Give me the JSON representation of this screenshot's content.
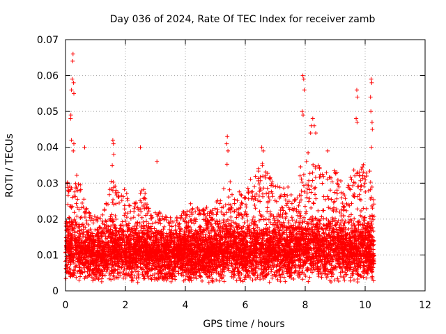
{
  "chart_data": {
    "type": "scatter",
    "title": "Day 036 of 2024, Rate Of TEC Index for receiver zamb",
    "xlabel": "GPS time / hours",
    "ylabel": "ROTI / TECUs",
    "xlim": [
      0,
      12
    ],
    "ylim": [
      0,
      0.07
    ],
    "xticks": [
      "0",
      "2",
      "4",
      "6",
      "8",
      "10",
      "12"
    ],
    "yticks": [
      "0",
      "0.01",
      "0.02",
      "0.03",
      "0.04",
      "0.05",
      "0.06",
      "0.07"
    ],
    "grid": true,
    "marker": "+",
    "color": "#ff0000",
    "series": [
      {
        "name": "ROTI",
        "x_range_hours": [
          0,
          10.3
        ],
        "typical_range": [
          0.002,
          0.02
        ],
        "envelope": [
          [
            0.0,
            0.03
          ],
          [
            0.2,
            0.031
          ],
          [
            0.4,
            0.034
          ],
          [
            0.6,
            0.026
          ],
          [
            0.8,
            0.022
          ],
          [
            1.0,
            0.021
          ],
          [
            1.2,
            0.022
          ],
          [
            1.4,
            0.026
          ],
          [
            1.6,
            0.033
          ],
          [
            1.8,
            0.026
          ],
          [
            2.0,
            0.029
          ],
          [
            2.2,
            0.023
          ],
          [
            2.4,
            0.027
          ],
          [
            2.6,
            0.03
          ],
          [
            2.8,
            0.023
          ],
          [
            3.0,
            0.022
          ],
          [
            3.2,
            0.022
          ],
          [
            3.4,
            0.021
          ],
          [
            3.6,
            0.02
          ],
          [
            3.8,
            0.021
          ],
          [
            4.0,
            0.023
          ],
          [
            4.2,
            0.025
          ],
          [
            4.4,
            0.024
          ],
          [
            4.6,
            0.025
          ],
          [
            4.8,
            0.022
          ],
          [
            5.0,
            0.025
          ],
          [
            5.2,
            0.027
          ],
          [
            5.4,
            0.036
          ],
          [
            5.6,
            0.025
          ],
          [
            5.8,
            0.028
          ],
          [
            6.0,
            0.026
          ],
          [
            6.2,
            0.032
          ],
          [
            6.4,
            0.035
          ],
          [
            6.6,
            0.036
          ],
          [
            6.8,
            0.032
          ],
          [
            7.0,
            0.03
          ],
          [
            7.2,
            0.029
          ],
          [
            7.4,
            0.03
          ],
          [
            7.6,
            0.026
          ],
          [
            7.8,
            0.033
          ],
          [
            8.0,
            0.04
          ],
          [
            8.2,
            0.038
          ],
          [
            8.4,
            0.036
          ],
          [
            8.6,
            0.033
          ],
          [
            8.8,
            0.035
          ],
          [
            9.0,
            0.034
          ],
          [
            9.2,
            0.031
          ],
          [
            9.4,
            0.029
          ],
          [
            9.6,
            0.034
          ],
          [
            9.8,
            0.033
          ],
          [
            10.0,
            0.037
          ],
          [
            10.3,
            0.03
          ]
        ],
        "peaks": [
          [
            0.25,
            0.066
          ],
          [
            0.24,
            0.064
          ],
          [
            0.22,
            0.059
          ],
          [
            0.27,
            0.058
          ],
          [
            0.2,
            0.056
          ],
          [
            0.28,
            0.055
          ],
          [
            0.18,
            0.049
          ],
          [
            0.17,
            0.048
          ],
          [
            0.2,
            0.042
          ],
          [
            0.28,
            0.041
          ],
          [
            0.26,
            0.039
          ],
          [
            0.64,
            0.04
          ],
          [
            1.58,
            0.042
          ],
          [
            1.6,
            0.041
          ],
          [
            1.61,
            0.038
          ],
          [
            1.56,
            0.035
          ],
          [
            2.5,
            0.04
          ],
          [
            3.05,
            0.036
          ],
          [
            5.4,
            0.043
          ],
          [
            5.38,
            0.041
          ],
          [
            5.42,
            0.039
          ],
          [
            6.55,
            0.04
          ],
          [
            6.6,
            0.039
          ],
          [
            7.92,
            0.06
          ],
          [
            7.95,
            0.059
          ],
          [
            7.97,
            0.056
          ],
          [
            7.9,
            0.05
          ],
          [
            7.93,
            0.049
          ],
          [
            8.25,
            0.048
          ],
          [
            8.2,
            0.046
          ],
          [
            8.3,
            0.046
          ],
          [
            8.18,
            0.044
          ],
          [
            8.35,
            0.044
          ],
          [
            8.75,
            0.039
          ],
          [
            9.72,
            0.056
          ],
          [
            9.74,
            0.054
          ],
          [
            9.7,
            0.048
          ],
          [
            9.73,
            0.047
          ],
          [
            10.2,
            0.059
          ],
          [
            10.22,
            0.058
          ],
          [
            10.18,
            0.054
          ],
          [
            10.19,
            0.05
          ],
          [
            10.23,
            0.047
          ],
          [
            10.24,
            0.045
          ],
          [
            10.21,
            0.04
          ]
        ]
      }
    ]
  }
}
